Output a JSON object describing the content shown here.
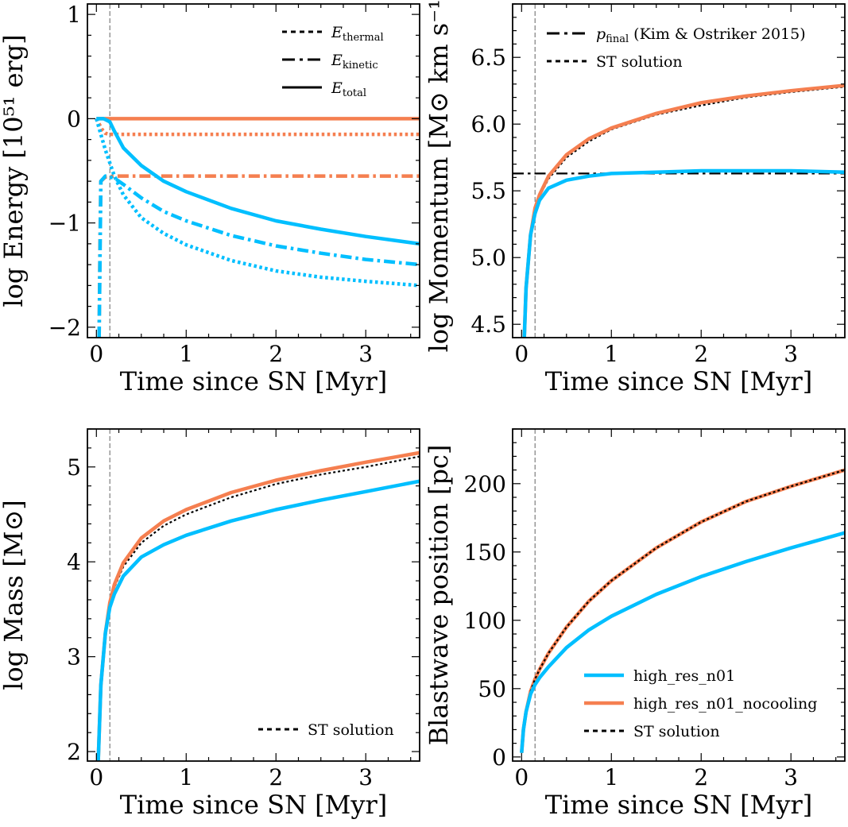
{
  "colors": {
    "cooling": "#00bfff",
    "nocooling": "#f57f50",
    "analytic": "#000000",
    "sn_marker": "#888888"
  },
  "chart_data": [
    {
      "type": "line",
      "id": "energy",
      "xlabel": "Time since SN [Myr]",
      "ylabel": "log Energy [10⁵¹ erg]",
      "xlim": [
        -0.1,
        3.6
      ],
      "ylim": [
        -2.1,
        1.1
      ],
      "xticks": [
        0,
        1,
        2,
        3
      ],
      "yticks": [
        1,
        0,
        -1,
        -2
      ],
      "ytick_labels": [
        "1",
        "0",
        "−1",
        "−2"
      ],
      "sn_marker_x": 0.15,
      "legend_position": "top-right",
      "legend": [
        {
          "label": "E",
          "sub": "thermal",
          "dash": "dotted"
        },
        {
          "label": "E",
          "sub": "kinetic",
          "dash": "dashdot"
        },
        {
          "label": "E",
          "sub": "total",
          "dash": "solid"
        }
      ],
      "series": [
        {
          "run": "nocooling",
          "quantity": "E_total",
          "dash": "solid",
          "x": [
            0,
            0.05,
            0.15,
            1,
            2,
            3,
            3.6
          ],
          "y": [
            0,
            0,
            0,
            0,
            0,
            0,
            0
          ]
        },
        {
          "run": "nocooling",
          "quantity": "E_thermal",
          "dash": "dotted",
          "x": [
            0,
            0.03,
            0.06,
            0.1,
            0.15,
            0.3,
            1,
            2,
            3,
            3.6
          ],
          "y": [
            0,
            -0.05,
            -0.1,
            -0.14,
            -0.15,
            -0.15,
            -0.15,
            -0.15,
            -0.15,
            -0.15
          ]
        },
        {
          "run": "nocooling",
          "quantity": "E_kinetic",
          "dash": "dashdot",
          "x": [
            0.03,
            0.04,
            0.05,
            0.1,
            0.2,
            1,
            2,
            3,
            3.6
          ],
          "y": [
            -2.1,
            -1.2,
            -0.6,
            -0.56,
            -0.55,
            -0.55,
            -0.55,
            -0.55,
            -0.55
          ]
        },
        {
          "run": "cooling",
          "quantity": "E_total",
          "dash": "solid",
          "x": [
            0,
            0.08,
            0.15,
            0.2,
            0.3,
            0.5,
            0.75,
            1,
            1.5,
            2,
            2.5,
            3,
            3.6
          ],
          "y": [
            0,
            0,
            -0.03,
            -0.12,
            -0.28,
            -0.45,
            -0.6,
            -0.7,
            -0.86,
            -0.98,
            -1.06,
            -1.13,
            -1.2
          ]
        },
        {
          "run": "cooling",
          "quantity": "E_kinetic",
          "dash": "dashdot",
          "x": [
            0.03,
            0.05,
            0.1,
            0.2,
            0.3,
            0.5,
            0.75,
            1,
            1.5,
            2,
            2.5,
            3,
            3.6
          ],
          "y": [
            -2.1,
            -0.6,
            -0.55,
            -0.57,
            -0.63,
            -0.76,
            -0.89,
            -0.98,
            -1.12,
            -1.22,
            -1.29,
            -1.35,
            -1.4
          ]
        },
        {
          "run": "cooling",
          "quantity": "E_thermal",
          "dash": "dotted",
          "x": [
            0,
            0.05,
            0.1,
            0.2,
            0.3,
            0.5,
            0.75,
            1,
            1.5,
            2,
            2.5,
            3,
            3.6
          ],
          "y": [
            0,
            -0.15,
            -0.3,
            -0.55,
            -0.73,
            -0.95,
            -1.1,
            -1.21,
            -1.36,
            -1.46,
            -1.52,
            -1.56,
            -1.6
          ]
        }
      ]
    },
    {
      "type": "line",
      "id": "momentum",
      "xlabel": "Time since SN [Myr]",
      "ylabel": "log Momentum [M⊙ km s⁻¹]",
      "xlim": [
        -0.1,
        3.6
      ],
      "ylim": [
        4.4,
        6.9
      ],
      "xticks": [
        0,
        1,
        2,
        3
      ],
      "yticks": [
        4.5,
        5.0,
        5.5,
        6.0,
        6.5
      ],
      "ytick_labels": [
        "4.5",
        "5.0",
        "5.5",
        "6.0",
        "6.5"
      ],
      "sn_marker_x": 0.15,
      "legend_position": "top-right",
      "legend": [
        {
          "label": "p",
          "sub": "final",
          "tail": " (Kim & Ostriker 2015)",
          "dash": "dashdot"
        },
        {
          "label": "ST solution",
          "dash": "dotted"
        }
      ],
      "series": [
        {
          "run": "analytic",
          "quantity": "p_final",
          "dash": "dashdot",
          "thin": true,
          "x": [
            -0.1,
            3.6
          ],
          "y": [
            5.63,
            5.63
          ]
        },
        {
          "run": "analytic",
          "quantity": "ST",
          "dash": "dotted",
          "thin": true,
          "x": [
            0.03,
            0.05,
            0.1,
            0.15,
            0.2,
            0.3,
            0.5,
            0.75,
            1,
            1.5,
            2,
            2.5,
            3,
            3.6
          ],
          "y": [
            4.4,
            4.77,
            5.17,
            5.37,
            5.46,
            5.59,
            5.75,
            5.87,
            5.96,
            6.07,
            6.14,
            6.2,
            6.24,
            6.28
          ]
        },
        {
          "run": "nocooling",
          "quantity": "p",
          "dash": "solid",
          "x": [
            0.03,
            0.05,
            0.1,
            0.15,
            0.2,
            0.3,
            0.5,
            0.75,
            1,
            1.5,
            2,
            2.5,
            3,
            3.6
          ],
          "y": [
            4.4,
            4.77,
            5.17,
            5.37,
            5.47,
            5.61,
            5.77,
            5.89,
            5.97,
            6.08,
            6.16,
            6.21,
            6.25,
            6.29
          ]
        },
        {
          "run": "cooling",
          "quantity": "p",
          "dash": "solid",
          "x": [
            0.03,
            0.05,
            0.1,
            0.15,
            0.2,
            0.3,
            0.5,
            0.75,
            1,
            1.5,
            2,
            2.5,
            3,
            3.6
          ],
          "y": [
            4.4,
            4.77,
            5.17,
            5.33,
            5.43,
            5.52,
            5.58,
            5.61,
            5.63,
            5.64,
            5.65,
            5.65,
            5.65,
            5.64
          ]
        }
      ]
    },
    {
      "type": "line",
      "id": "mass",
      "xlabel": "Time since SN [Myr]",
      "ylabel": "log Mass [M⊙]",
      "xlim": [
        -0.1,
        3.6
      ],
      "ylim": [
        1.9,
        5.4
      ],
      "xticks": [
        0,
        1,
        2,
        3
      ],
      "yticks": [
        2,
        3,
        4,
        5
      ],
      "ytick_labels": [
        "2",
        "3",
        "4",
        "5"
      ],
      "sn_marker_x": 0.15,
      "legend_position": "bottom-right",
      "legend": [
        {
          "label": "ST solution",
          "dash": "dotted"
        }
      ],
      "series": [
        {
          "run": "analytic",
          "quantity": "ST",
          "dash": "dotted",
          "thin": true,
          "x": [
            0.02,
            0.05,
            0.1,
            0.15,
            0.2,
            0.3,
            0.5,
            0.75,
            1,
            1.5,
            2,
            2.5,
            3,
            3.6
          ],
          "y": [
            1.9,
            2.7,
            3.25,
            3.55,
            3.73,
            3.95,
            4.2,
            4.38,
            4.5,
            4.68,
            4.82,
            4.92,
            5.0,
            5.11
          ]
        },
        {
          "run": "nocooling",
          "quantity": "M",
          "dash": "solid",
          "x": [
            0.02,
            0.05,
            0.1,
            0.15,
            0.2,
            0.3,
            0.5,
            0.75,
            1,
            1.5,
            2,
            2.5,
            3,
            3.6
          ],
          "y": [
            1.9,
            2.7,
            3.25,
            3.57,
            3.76,
            3.99,
            4.25,
            4.43,
            4.55,
            4.73,
            4.86,
            4.96,
            5.05,
            5.15
          ]
        },
        {
          "run": "cooling",
          "quantity": "M",
          "dash": "solid",
          "x": [
            0.02,
            0.05,
            0.1,
            0.15,
            0.2,
            0.3,
            0.5,
            0.75,
            1,
            1.5,
            2,
            2.5,
            3,
            3.6
          ],
          "y": [
            1.9,
            2.7,
            3.25,
            3.52,
            3.66,
            3.85,
            4.05,
            4.18,
            4.28,
            4.43,
            4.55,
            4.65,
            4.74,
            4.85
          ]
        }
      ]
    },
    {
      "type": "line",
      "id": "blastwave",
      "xlabel": "Time since SN [Myr]",
      "ylabel": "Blastwave position [pc]",
      "xlim": [
        -0.1,
        3.6
      ],
      "ylim": [
        -3,
        240
      ],
      "xticks": [
        0,
        1,
        2,
        3
      ],
      "yticks": [
        0,
        50,
        100,
        150,
        200
      ],
      "ytick_labels": [
        "0",
        "50",
        "100",
        "150",
        "200"
      ],
      "sn_marker_x": 0.15,
      "legend_position": "bottom-right",
      "legend": [
        {
          "label": "high_res_n01",
          "run": "cooling",
          "dash": "solid"
        },
        {
          "label": "high_res_n01_nocooling",
          "run": "nocooling",
          "dash": "solid"
        },
        {
          "label": "ST solution",
          "run": "analytic",
          "dash": "dotted"
        }
      ],
      "series": [
        {
          "run": "nocooling",
          "quantity": "R",
          "dash": "solid",
          "x": [
            0,
            0.02,
            0.05,
            0.1,
            0.15,
            0.2,
            0.3,
            0.5,
            0.75,
            1,
            1.5,
            2,
            2.5,
            3,
            3.6
          ],
          "y": [
            3,
            20,
            33,
            48,
            57,
            64,
            76,
            95,
            114,
            129,
            153,
            172,
            187,
            198,
            210
          ]
        },
        {
          "run": "analytic",
          "quantity": "ST",
          "dash": "dotted",
          "thin": true,
          "x": [
            0,
            0.02,
            0.05,
            0.1,
            0.15,
            0.2,
            0.3,
            0.5,
            0.75,
            1,
            1.5,
            2,
            2.5,
            3,
            3.6
          ],
          "y": [
            3,
            20,
            33,
            48,
            57,
            64,
            76,
            95,
            114,
            129,
            153,
            172,
            187,
            198,
            210
          ]
        },
        {
          "run": "cooling",
          "quantity": "R",
          "dash": "solid",
          "x": [
            0,
            0.02,
            0.05,
            0.1,
            0.15,
            0.2,
            0.3,
            0.5,
            0.75,
            1,
            1.5,
            2,
            2.5,
            3,
            3.6
          ],
          "y": [
            3,
            20,
            33,
            46,
            53,
            58,
            66,
            80,
            93,
            103,
            119,
            132,
            143,
            153,
            164
          ]
        }
      ]
    }
  ]
}
